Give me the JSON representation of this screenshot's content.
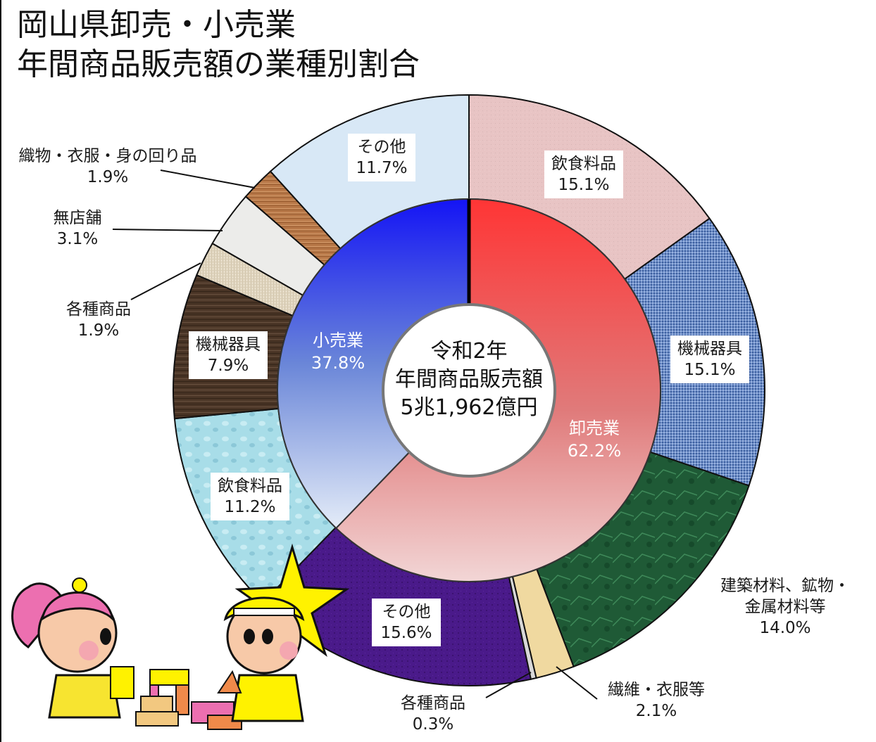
{
  "title": {
    "line1": "岡山県卸売・小売業",
    "line2": "年間商品販売額の業種別割合"
  },
  "center": {
    "line1": "令和2年",
    "line2": "年間商品販売額",
    "line3": "5兆1,962億円"
  },
  "labels": {
    "wholesale": {
      "name": "卸売業",
      "pct": "62.2%"
    },
    "retail": {
      "name": "小売業",
      "pct": "37.8%"
    },
    "w_food": {
      "name": "飲食料品",
      "pct": "15.1%"
    },
    "w_machine": {
      "name": "機械器具",
      "pct": "15.1%"
    },
    "w_building": {
      "name1": "建築材料、鉱物・",
      "name2": "金属材料等",
      "pct": "14.0%"
    },
    "w_textile": {
      "name": "繊維・衣服等",
      "pct": "2.1%"
    },
    "w_general": {
      "name": "各種商品",
      "pct": "0.3%"
    },
    "w_other": {
      "name": "その他",
      "pct": "15.6%"
    },
    "r_food": {
      "name": "飲食料品",
      "pct": "11.2%"
    },
    "r_machine": {
      "name": "機械器具",
      "pct": "7.9%"
    },
    "r_general": {
      "name": "各種商品",
      "pct": "1.9%"
    },
    "r_nonstore": {
      "name": "無店舗",
      "pct": "3.1%"
    },
    "r_textile": {
      "name": "織物・衣服・身の回り品",
      "pct": "1.9%"
    },
    "r_other": {
      "name": "その他",
      "pct": "11.7%"
    }
  },
  "chart_data": {
    "type": "pie",
    "subtype": "nested-donut",
    "title": "岡山県卸売・小売業 年間商品販売額の業種別割合",
    "center_text": "令和2年 年間商品販売額 5兆1,962億円",
    "inner_ring": {
      "categories": [
        "卸売業",
        "小売業"
      ],
      "values": [
        62.2,
        37.8
      ],
      "colors": [
        "#f03a3a",
        "#1a22f0"
      ]
    },
    "outer_ring": {
      "categories": [
        "卸売業:飲食料品",
        "卸売業:機械器具",
        "卸売業:建築材料、鉱物・金属材料等",
        "卸売業:繊維・衣服等",
        "卸売業:各種商品",
        "卸売業:その他",
        "小売業:飲食料品",
        "小売業:機械器具",
        "小売業:各種商品",
        "小売業:無店舗",
        "小売業:織物・衣服・身の回り品",
        "小売業:その他"
      ],
      "values": [
        15.1,
        15.1,
        14.0,
        2.1,
        0.3,
        15.6,
        11.2,
        7.9,
        1.9,
        3.1,
        1.9,
        11.7
      ],
      "colors": [
        "#e8c4c4",
        "#6f8fc8",
        "#1f5a36",
        "#f0d9a0",
        "#d8d8d8",
        "#4a1a8a",
        "#a8dde8",
        "#4a3526",
        "#e6dcc8",
        "#ececea",
        "#b87848",
        "#d8e8f6"
      ]
    },
    "start_angle_deg": 0,
    "direction": "clockwise"
  }
}
